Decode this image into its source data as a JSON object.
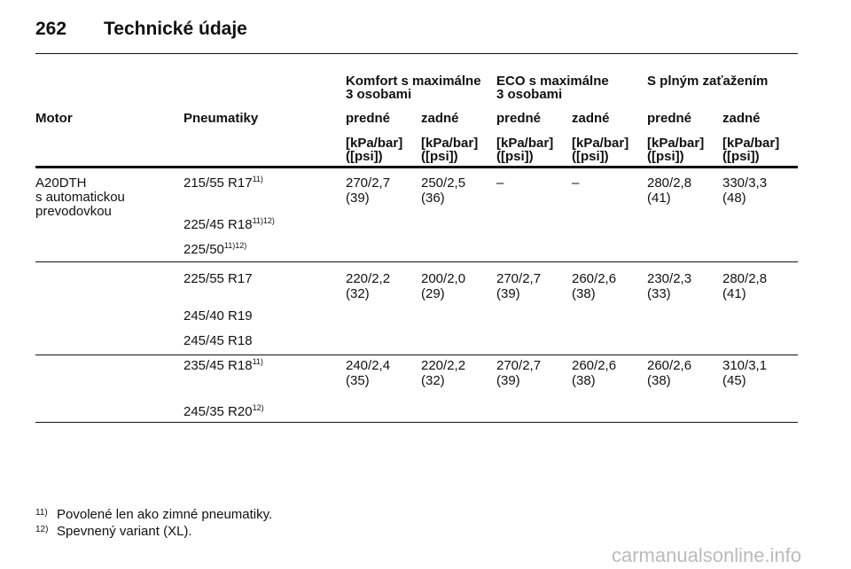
{
  "header": {
    "page": "262",
    "title": "Technické údaje"
  },
  "table": {
    "groups": [
      [
        "Komfort s maximálne",
        "3 osobami"
      ],
      [
        "ECO s maximálne",
        "3 osobami"
      ],
      [
        "S plným zaťažením"
      ]
    ],
    "columns": [
      "Motor",
      "Pneumatiky",
      "predné",
      "zadné",
      "predné",
      "zadné",
      "predné",
      "zadné"
    ],
    "units": [
      [
        "[kPa/bar]",
        "([psi])"
      ],
      [
        "[kPa/bar]",
        "([psi])"
      ],
      [
        "[kPa/bar]",
        "([psi])"
      ],
      [
        "[kPa/bar]",
        "([psi])"
      ],
      [
        "[kPa/bar]",
        "([psi])"
      ],
      [
        "[kPa/bar]",
        "([psi])"
      ]
    ],
    "motor": [
      "A20DTH",
      "s automatickou",
      "prevodovkou"
    ],
    "sections": [
      {
        "tires": [
          {
            "name": "215/55 R17",
            "note": "11)"
          },
          {
            "name": "225/45 R18",
            "note": "11)12)"
          },
          {
            "name": "225/50",
            "note": "11)12)"
          }
        ],
        "values": [
          [
            "270/2,7",
            "(39)"
          ],
          [
            "250/2,5",
            "(36)"
          ],
          [
            "–"
          ],
          [
            "–"
          ],
          [
            "280/2,8",
            "(41)"
          ],
          [
            "330/3,3",
            "(48)"
          ]
        ]
      },
      {
        "tires": [
          {
            "name": "225/55 R17"
          },
          {
            "name": "245/40 R19"
          },
          {
            "name": "245/45 R18"
          }
        ],
        "values": [
          [
            "220/2,2",
            "(32)"
          ],
          [
            "200/2,0",
            "(29)"
          ],
          [
            "270/2,7",
            "(39)"
          ],
          [
            "260/2,6",
            "(38)"
          ],
          [
            "230/2,3",
            "(33)"
          ],
          [
            "280/2,8",
            "(41)"
          ]
        ]
      },
      {
        "tires": [
          {
            "name": "235/45 R18",
            "note": "11)"
          },
          {
            "name": "245/35 R20",
            "note": "12)"
          }
        ],
        "values": [
          [
            "240/2,4",
            "(35)"
          ],
          [
            "220/2,2",
            "(32)"
          ],
          [
            "270/2,7",
            "(39)"
          ],
          [
            "260/2,6",
            "(38)"
          ],
          [
            "260/2,6",
            "(38)"
          ],
          [
            "310/3,1",
            "(45)"
          ]
        ]
      }
    ]
  },
  "footnotes": [
    {
      "mark": "11)",
      "text": "Povolené len ako zimné pneumatiky."
    },
    {
      "mark": "12)",
      "text": "Spevnený variant (XL)."
    }
  ],
  "watermark": "carmanualsonline.info"
}
